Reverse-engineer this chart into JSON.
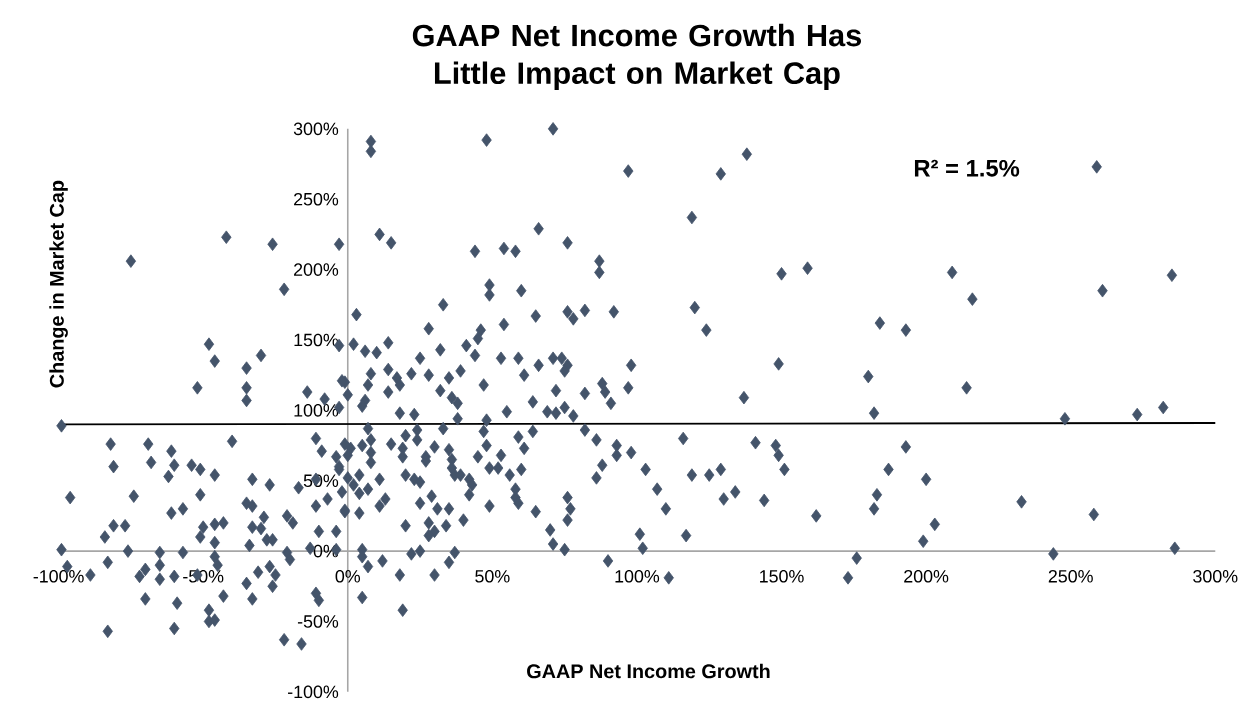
{
  "chart_data": {
    "type": "scatter",
    "title": "GAAP Net Income Growth Has Little Impact on Market Cap",
    "xlabel": "GAAP Net Income Growth",
    "ylabel": "Change in Market Cap",
    "annotations": [
      "R² = 1.5%"
    ],
    "xlim": [
      -100,
      300
    ],
    "ylim": [
      -100,
      300
    ],
    "xticks": [
      {
        "value": -100,
        "label": "-100%"
      },
      {
        "value": -50,
        "label": "-50%"
      },
      {
        "value": 0,
        "label": "0%"
      },
      {
        "value": 50,
        "label": "50%"
      },
      {
        "value": 100,
        "label": "100%"
      },
      {
        "value": 150,
        "label": "150%"
      },
      {
        "value": 200,
        "label": "200%"
      },
      {
        "value": 250,
        "label": "250%"
      },
      {
        "value": 300,
        "label": "300%"
      }
    ],
    "yticks": [
      {
        "value": -100,
        "label": "-100%"
      },
      {
        "value": -50,
        "label": "-50%"
      },
      {
        "value": 0,
        "label": "0%"
      },
      {
        "value": 50,
        "label": "50%"
      },
      {
        "value": 100,
        "label": "100%"
      },
      {
        "value": 150,
        "label": "150%"
      },
      {
        "value": 200,
        "label": "200%"
      },
      {
        "value": 250,
        "label": "250%"
      },
      {
        "value": 300,
        "label": "300%"
      }
    ],
    "series": [
      {
        "marker": "diamond",
        "color": "#44546a",
        "x": [
          209,
          216,
          214,
          259,
          261,
          285,
          248,
          273,
          282,
          200,
          233,
          203,
          199,
          258,
          244,
          286,
          97,
          129,
          138,
          119,
          150,
          159,
          120,
          124,
          184,
          193,
          98,
          97,
          149,
          137,
          180,
          182,
          116,
          141,
          148,
          149,
          193,
          98,
          103,
          119,
          125,
          129,
          151,
          187,
          107,
          134,
          130,
          144,
          183,
          110,
          162,
          182,
          101,
          102,
          117,
          176,
          173,
          111,
          8,
          8,
          48,
          71,
          11,
          15,
          66,
          44,
          54,
          58,
          76,
          87,
          87,
          49,
          49,
          60,
          3,
          33,
          65,
          76,
          78,
          82,
          92,
          28,
          54,
          46,
          45,
          41,
          44,
          2,
          6,
          10,
          14,
          25,
          32,
          53,
          59,
          61,
          66,
          71,
          74,
          76,
          75,
          -1,
          8,
          7,
          14,
          17,
          18,
          22,
          28,
          35,
          39,
          32,
          36,
          38,
          47,
          14,
          0,
          6,
          5,
          72,
          82,
          88,
          89,
          91,
          64,
          69,
          72,
          75,
          78,
          55,
          18,
          23,
          38,
          48,
          33,
          24,
          7,
          20,
          47,
          64,
          82,
          86,
          59,
          48,
          61,
          93,
          93,
          -1,
          8,
          15,
          19,
          24,
          30,
          35,
          1,
          5,
          8,
          0,
          8,
          19,
          27,
          36,
          45,
          53,
          27,
          36,
          37,
          49,
          52,
          56,
          60,
          20,
          23,
          25,
          39,
          42,
          43,
          -3,
          0,
          4,
          2,
          11,
          -2,
          4,
          7,
          86,
          42,
          58,
          58,
          59,
          76,
          77,
          76,
          13,
          11,
          29,
          25,
          31,
          35,
          49,
          65,
          -1,
          4,
          28,
          34,
          40,
          20,
          30,
          28,
          70,
          71,
          75,
          88,
          90,
          5,
          5,
          22,
          25,
          37,
          35,
          12,
          7,
          18,
          30,
          5,
          19,
          -99,
          -75,
          -42,
          -26,
          -3,
          -22,
          -48,
          -46,
          -35,
          -30,
          -3,
          -52,
          -35,
          -35,
          -14,
          -8,
          -3,
          -2,
          -82,
          -69,
          -40,
          -11,
          -9,
          -4,
          -61,
          -81,
          -68,
          -60,
          -54,
          -51,
          -62,
          -46,
          -33,
          -27,
          -17,
          -11,
          -3,
          -96,
          -74,
          -51,
          -35,
          -61,
          -57,
          -33,
          -11,
          -7,
          -1,
          -81,
          -77,
          -84,
          -51,
          -50,
          -46,
          -43,
          -29,
          -21,
          -19,
          -33,
          -30,
          -10,
          -4,
          -99,
          -76,
          -65,
          -57,
          -46,
          -34,
          -28,
          -26,
          -21,
          -20,
          -13,
          -4,
          -97,
          -89,
          -83,
          -70,
          -65,
          -72,
          -65,
          -60,
          -52,
          -46,
          -45,
          -31,
          -27,
          -25,
          -35,
          -26,
          -43,
          -33,
          -70,
          -59,
          -11,
          -10,
          -48,
          -48,
          -46,
          -60,
          -83,
          -22,
          -16
        ],
        "values": [
          198,
          179,
          116,
          273,
          185,
          196,
          94,
          97,
          102,
          51,
          35,
          19,
          7,
          26,
          -2,
          2,
          270,
          268,
          282,
          237,
          197,
          201,
          173,
          157,
          162,
          157,
          132,
          116,
          133,
          109,
          124,
          98,
          80,
          77,
          75,
          68,
          74,
          70,
          58,
          54,
          54,
          58,
          58,
          58,
          44,
          42,
          37,
          36,
          40,
          30,
          25,
          30,
          12,
          2,
          11,
          -5,
          -19,
          -19,
          291,
          284,
          292,
          300,
          225,
          219,
          229,
          213,
          215,
          213,
          219,
          206,
          198,
          189,
          182,
          185,
          168,
          175,
          167,
          170,
          165,
          171,
          170,
          158,
          161,
          157,
          151,
          146,
          139,
          147,
          142,
          141,
          148,
          137,
          143,
          137,
          137,
          125,
          132,
          137,
          137,
          132,
          128,
          120,
          126,
          118,
          129,
          123,
          118,
          126,
          125,
          123,
          128,
          114,
          109,
          105,
          118,
          113,
          111,
          107,
          103,
          114,
          112,
          119,
          113,
          105,
          106,
          99,
          98,
          102,
          96,
          99,
          98,
          97,
          94,
          93,
          87,
          86,
          87,
          82,
          85,
          85,
          86,
          79,
          81,
          75,
          73,
          75,
          68,
          76,
          79,
          76,
          73,
          79,
          74,
          72,
          73,
          75,
          70,
          68,
          63,
          67,
          67,
          65,
          67,
          68,
          64,
          59,
          54,
          59,
          59,
          54,
          58,
          54,
          51,
          49,
          54,
          51,
          47,
          58,
          52,
          54,
          47,
          51,
          42,
          41,
          44,
          52,
          40,
          44,
          38,
          34,
          38,
          30,
          22,
          37,
          32,
          39,
          34,
          30,
          30,
          32,
          28,
          28,
          27,
          20,
          18,
          22,
          18,
          14,
          11,
          15,
          5,
          1,
          61,
          -7,
          1,
          -4,
          -2,
          0,
          -1,
          -8,
          -7,
          -11,
          -17,
          -17,
          -33,
          -42,
          89,
          206,
          223,
          218,
          218,
          186,
          147,
          135,
          130,
          139,
          146,
          116,
          116,
          107,
          113,
          108,
          102,
          121,
          76,
          76,
          78,
          80,
          71,
          67,
          71,
          60,
          63,
          61,
          61,
          58,
          53,
          54,
          51,
          47,
          45,
          51,
          60,
          38,
          39,
          40,
          34,
          27,
          30,
          32,
          32,
          37,
          29,
          18,
          18,
          10,
          10,
          17,
          19,
          20,
          24,
          25,
          20,
          17,
          16,
          14,
          14,
          1,
          0,
          -1,
          -1,
          6,
          4,
          8,
          8,
          -1,
          -6,
          2,
          1,
          -11,
          -17,
          -8,
          -13,
          -10,
          -18,
          -20,
          -18,
          -17,
          -4,
          -10,
          -15,
          -11,
          -17,
          -23,
          -25,
          -32,
          -34,
          -34,
          -37,
          -30,
          -35,
          -42,
          -50,
          -49,
          -55,
          -57,
          -63,
          -66
        ]
      },
      {
        "type": "line",
        "color": "#000000",
        "x": [
          -100,
          300
        ],
        "values": [
          90,
          91
        ]
      }
    ]
  }
}
